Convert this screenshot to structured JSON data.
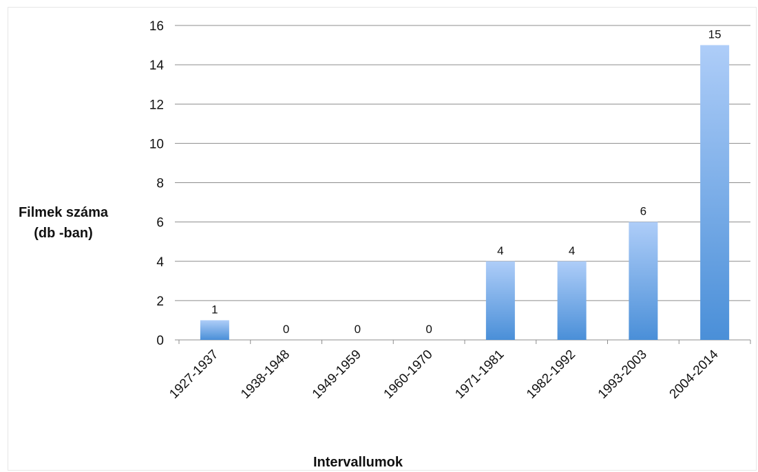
{
  "chart_data": {
    "type": "bar",
    "categories": [
      "1927-1937",
      "1938-1948",
      "1949-1959",
      "1960-1970",
      "1971-1981",
      "1982-1992",
      "1993-2003",
      "2004-2014"
    ],
    "values": [
      1,
      0,
      0,
      0,
      4,
      4,
      6,
      15
    ],
    "data_labels": [
      "1",
      "0",
      "0",
      "0",
      "4",
      "4",
      "6",
      "15"
    ],
    "xlabel": "Intervallumok",
    "ylabel_lines": [
      "Filmek száma",
      "(db -ban)"
    ],
    "ylim": [
      0,
      16
    ],
    "yticks": [
      0,
      2,
      4,
      6,
      8,
      10,
      12,
      14,
      16
    ],
    "grid": true,
    "legend": "none",
    "bar_color_top": "#aecdf8",
    "bar_color_bottom": "#4a8fd8",
    "grid_color": "#8c8c8c"
  }
}
